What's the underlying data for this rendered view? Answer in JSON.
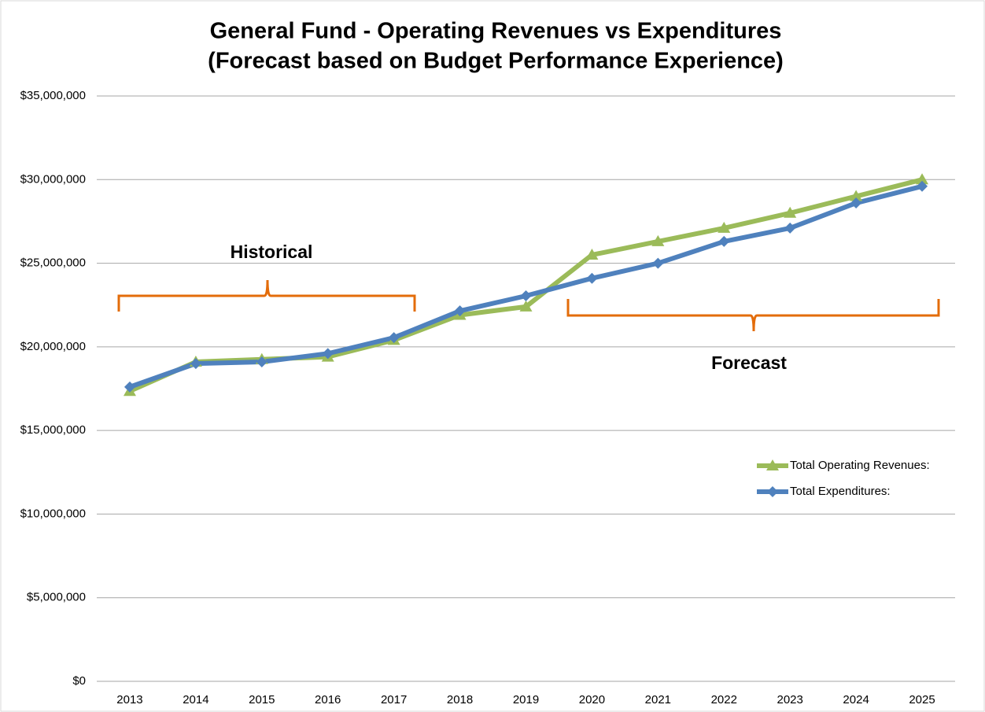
{
  "chart_data": {
    "type": "line",
    "title": "General Fund - Operating Revenues vs Expenditures",
    "subtitle": "(Forecast based on Budget Performance Experience)",
    "categories": [
      "2013",
      "2014",
      "2015",
      "2016",
      "2017",
      "2018",
      "2019",
      "2020",
      "2021",
      "2022",
      "2023",
      "2024",
      "2025"
    ],
    "series": [
      {
        "name": "Total Operating Revenues:",
        "color": "#9bbb59",
        "marker": "triangle",
        "values": [
          17350000,
          19100000,
          19250000,
          19400000,
          20400000,
          21900000,
          22400000,
          25500000,
          26300000,
          27100000,
          28000000,
          29000000,
          30000000
        ]
      },
      {
        "name": "Total Expenditures:",
        "color": "#4f81bd",
        "marker": "diamond",
        "values": [
          17600000,
          19000000,
          19100000,
          19600000,
          20550000,
          22150000,
          23050000,
          24100000,
          25000000,
          26300000,
          27100000,
          28600000,
          29600000
        ]
      }
    ],
    "ylim": [
      0,
      35000000
    ],
    "yticks": [
      {
        "value": 0,
        "label": "$0"
      },
      {
        "value": 5000000,
        "label": "$5,000,000"
      },
      {
        "value": 10000000,
        "label": "$10,000,000"
      },
      {
        "value": 15000000,
        "label": "$15,000,000"
      },
      {
        "value": 20000000,
        "label": "$20,000,000"
      },
      {
        "value": 25000000,
        "label": "$25,000,000"
      },
      {
        "value": 30000000,
        "label": "$30,000,000"
      },
      {
        "value": 35000000,
        "label": "$35,000,000"
      }
    ],
    "grid": true,
    "legend": "right",
    "annotations": [
      "Historical",
      "Forecast"
    ]
  }
}
